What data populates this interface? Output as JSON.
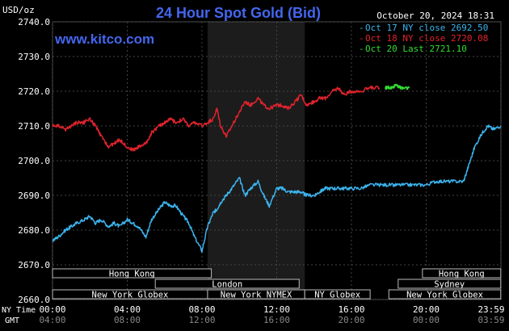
{
  "chart_data": {
    "type": "line",
    "title": "24 Hour Spot Gold (Bid)",
    "date": "October 20, 2024 18:31",
    "watermark": "www.kitco.com",
    "ylabel": "USD/oz",
    "ylim": [
      2660,
      2740
    ],
    "y_ticks": [
      "2740.0",
      "2730.0",
      "2720.0",
      "2710.0",
      "2700.0",
      "2690.0",
      "2680.0",
      "2670.0",
      "2660.0"
    ],
    "x_time_labels": {
      "row1_name": "NY Time",
      "row2_name": "GMT",
      "row1": [
        "00:00",
        "04:00",
        "08:00",
        "12:00",
        "16:00",
        "20:00",
        "23:59"
      ],
      "row2": [
        "04:00",
        "08:00",
        "12:00",
        "16:00",
        "20:00",
        "00:00",
        "03:59"
      ]
    },
    "legend": [
      {
        "label": "Oct 17 NY close 2692.50",
        "color": "#3cb4ee"
      },
      {
        "label": "Oct 18 NY close 2720.08",
        "color": "#e0232d"
      },
      {
        "label": "Oct 20 Last 2721.10",
        "color": "#33dd33"
      }
    ],
    "sessions": [
      {
        "label": "Hong Kong",
        "row": 0,
        "start": 0,
        "end": 8.5
      },
      {
        "label": "London",
        "row": 1,
        "start": 5.5,
        "end": 13.2
      },
      {
        "label": "New York Globex",
        "row": 2,
        "start": 0,
        "end": 8.3
      },
      {
        "label": "New York NYMEX",
        "row": 2,
        "start": 8.3,
        "end": 13.5
      },
      {
        "label": "NY Globex",
        "row": 2,
        "start": 13.5,
        "end": 17
      },
      {
        "label": "Hong Kong",
        "row": 0,
        "start": 19.8,
        "end": 23.99
      },
      {
        "label": "Sydney",
        "row": 1,
        "start": 18.5,
        "end": 23.99
      },
      {
        "label": "New York Globex",
        "row": 2,
        "start": 18,
        "end": 23.99
      }
    ],
    "series": [
      {
        "name": "Oct 17",
        "color": "#3cb4ee",
        "x": [
          0,
          0.3,
          0.7,
          1,
          1.3,
          1.7,
          2,
          2.3,
          2.6,
          3,
          3.3,
          3.6,
          4,
          4.3,
          4.6,
          5,
          5.3,
          5.7,
          6,
          6.3,
          6.6,
          7,
          7.3,
          7.6,
          8,
          8.3,
          8.6,
          8.8,
          9,
          9.3,
          9.6,
          10,
          10.3,
          10.6,
          11,
          11.3,
          11.6,
          12,
          12.3,
          12.6,
          13,
          13.3,
          13.6,
          14,
          14.3,
          14.6,
          15,
          15.3,
          15.6,
          16,
          16.5,
          17,
          17.5,
          18,
          18.5,
          19,
          19.5,
          20,
          20.5,
          21,
          21.5,
          22,
          22.3,
          22.6,
          23,
          23.3,
          23.6,
          23.99
        ],
        "y": [
          2677,
          2678,
          2680,
          2681,
          2682,
          2683,
          2684,
          2682,
          2683,
          2681,
          2682,
          2681,
          2683,
          2682,
          2681,
          2678,
          2683,
          2686,
          2688,
          2687,
          2687,
          2684,
          2682,
          2678,
          2674,
          2681,
          2685,
          2686,
          2688,
          2690,
          2692,
          2695,
          2690,
          2692,
          2694,
          2690,
          2687,
          2692,
          2692,
          2691,
          2691,
          2691,
          2690,
          2690,
          2691,
          2692,
          2692,
          2692,
          2692,
          2692,
          2692,
          2693,
          2693,
          2693,
          2693,
          2693,
          2693,
          2693,
          2694,
          2694,
          2694,
          2694,
          2699,
          2704,
          2708,
          2710,
          2709,
          2710
        ]
      },
      {
        "name": "Oct 18",
        "color": "#e0232d",
        "x": [
          0,
          0.3,
          0.7,
          1,
          1.3,
          1.7,
          2,
          2.3,
          2.6,
          3,
          3.3,
          3.6,
          4,
          4.3,
          4.6,
          5,
          5.3,
          5.7,
          6,
          6.3,
          6.6,
          7,
          7.3,
          7.6,
          8,
          8.3,
          8.6,
          8.8,
          9,
          9.3,
          9.6,
          10,
          10.3,
          10.6,
          11,
          11.3,
          11.6,
          12,
          12.3,
          12.6,
          13,
          13.3,
          13.6,
          14,
          14.3,
          14.6,
          15,
          15.3,
          15.6,
          16,
          16.5,
          17,
          17.5
        ],
        "y": [
          2710,
          2710,
          2709,
          2710,
          2711,
          2711,
          2712,
          2710,
          2707,
          2704,
          2705,
          2706,
          2704,
          2703,
          2704,
          2705,
          2708,
          2710,
          2711,
          2712,
          2711,
          2712,
          2710,
          2711,
          2710,
          2711,
          2712,
          2715,
          2710,
          2707,
          2710,
          2714,
          2717,
          2716,
          2718,
          2716,
          2715,
          2716,
          2716,
          2715,
          2717,
          2719,
          2716,
          2717,
          2718,
          2718,
          2720,
          2721,
          2719,
          2720,
          2720,
          2721,
          2721
        ]
      },
      {
        "name": "Oct 20",
        "color": "#33dd33",
        "x": [
          17.8,
          18,
          18.2,
          18.4,
          18.6,
          18.8,
          19.1
        ],
        "y": [
          2721,
          2721,
          2721,
          2722,
          2721,
          2721,
          2721
        ]
      }
    ],
    "shade_range": [
      8.3,
      13.5
    ]
  }
}
